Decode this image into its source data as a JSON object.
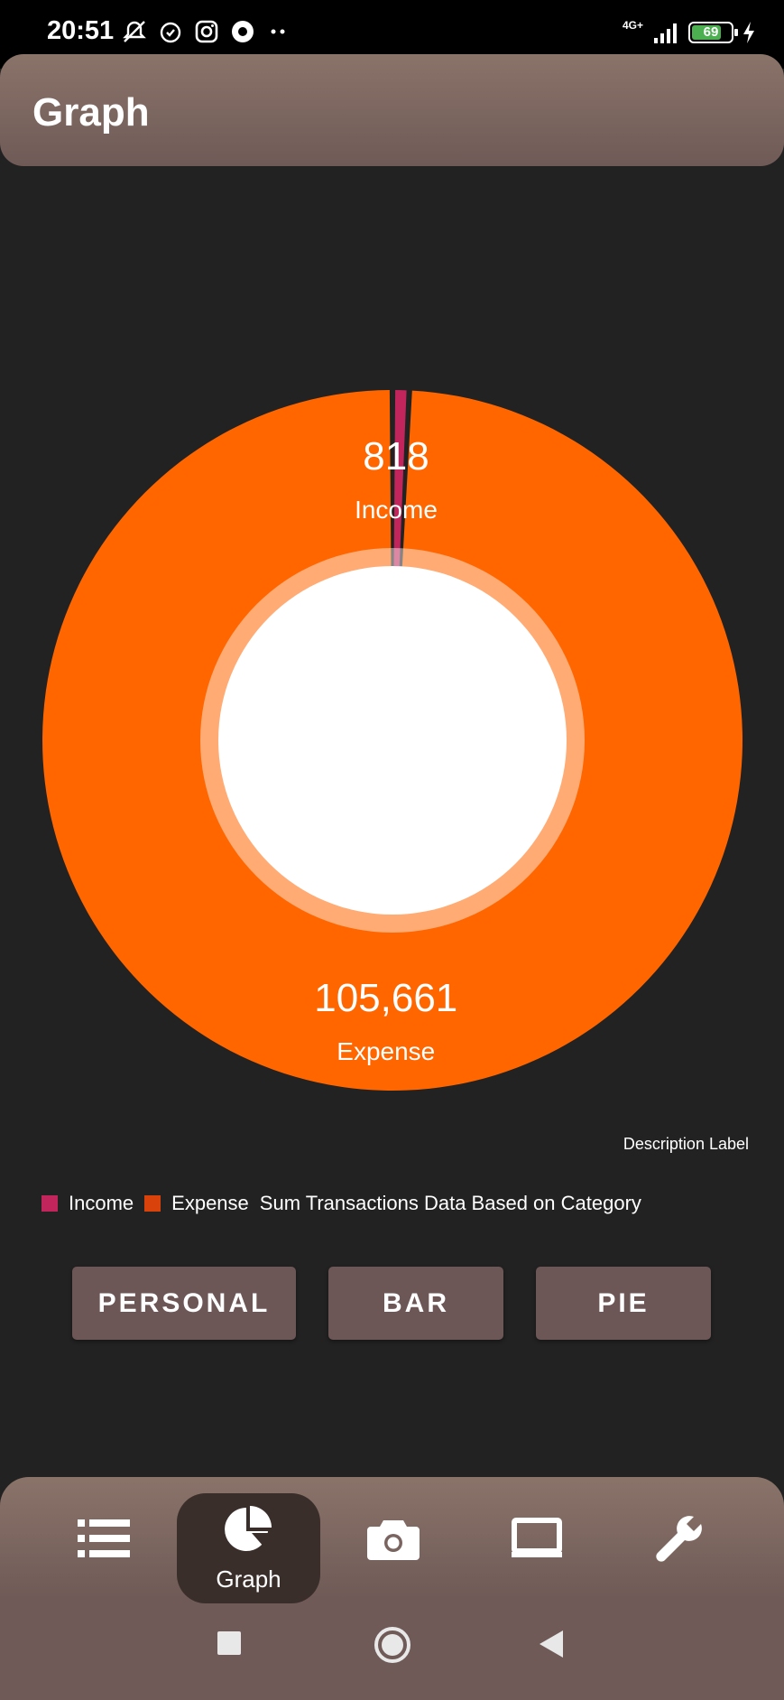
{
  "status_bar": {
    "time": "20:51",
    "network": "4G+",
    "battery": "69",
    "icons": [
      "mute-icon",
      "alarm-icon",
      "instagram-icon",
      "app-icon",
      "more-dots-icon",
      "signal-icon",
      "battery-icon",
      "charging-icon"
    ]
  },
  "app_bar": {
    "title": "Graph"
  },
  "chart_data": {
    "type": "pie",
    "slices": [
      {
        "label": "Income",
        "value": 818,
        "value_text": "818",
        "color": "#c2255c"
      },
      {
        "label": "Expense",
        "value": 105661,
        "value_text": "105,661",
        "color": "#ff6600"
      }
    ],
    "description": "Description Label",
    "legend_title": "Sum Transactions Data Based on Category",
    "legend_position": "bottom-left",
    "hole_color": "#ffffff"
  },
  "buttons": {
    "personal": "PERSONAL",
    "bar": "BAR",
    "pie": "PIE"
  },
  "bottom_nav": {
    "items": [
      {
        "icon": "list-icon"
      },
      {
        "icon": "pie-chart-icon",
        "label": "Graph",
        "active": true
      },
      {
        "icon": "camera-icon"
      },
      {
        "icon": "laptop-icon"
      },
      {
        "icon": "wrench-icon"
      }
    ]
  },
  "colors": {
    "background": "#222222",
    "app_bar": "#8a7369",
    "button": "#6d5656",
    "nav_active": "#3a2e2b"
  }
}
